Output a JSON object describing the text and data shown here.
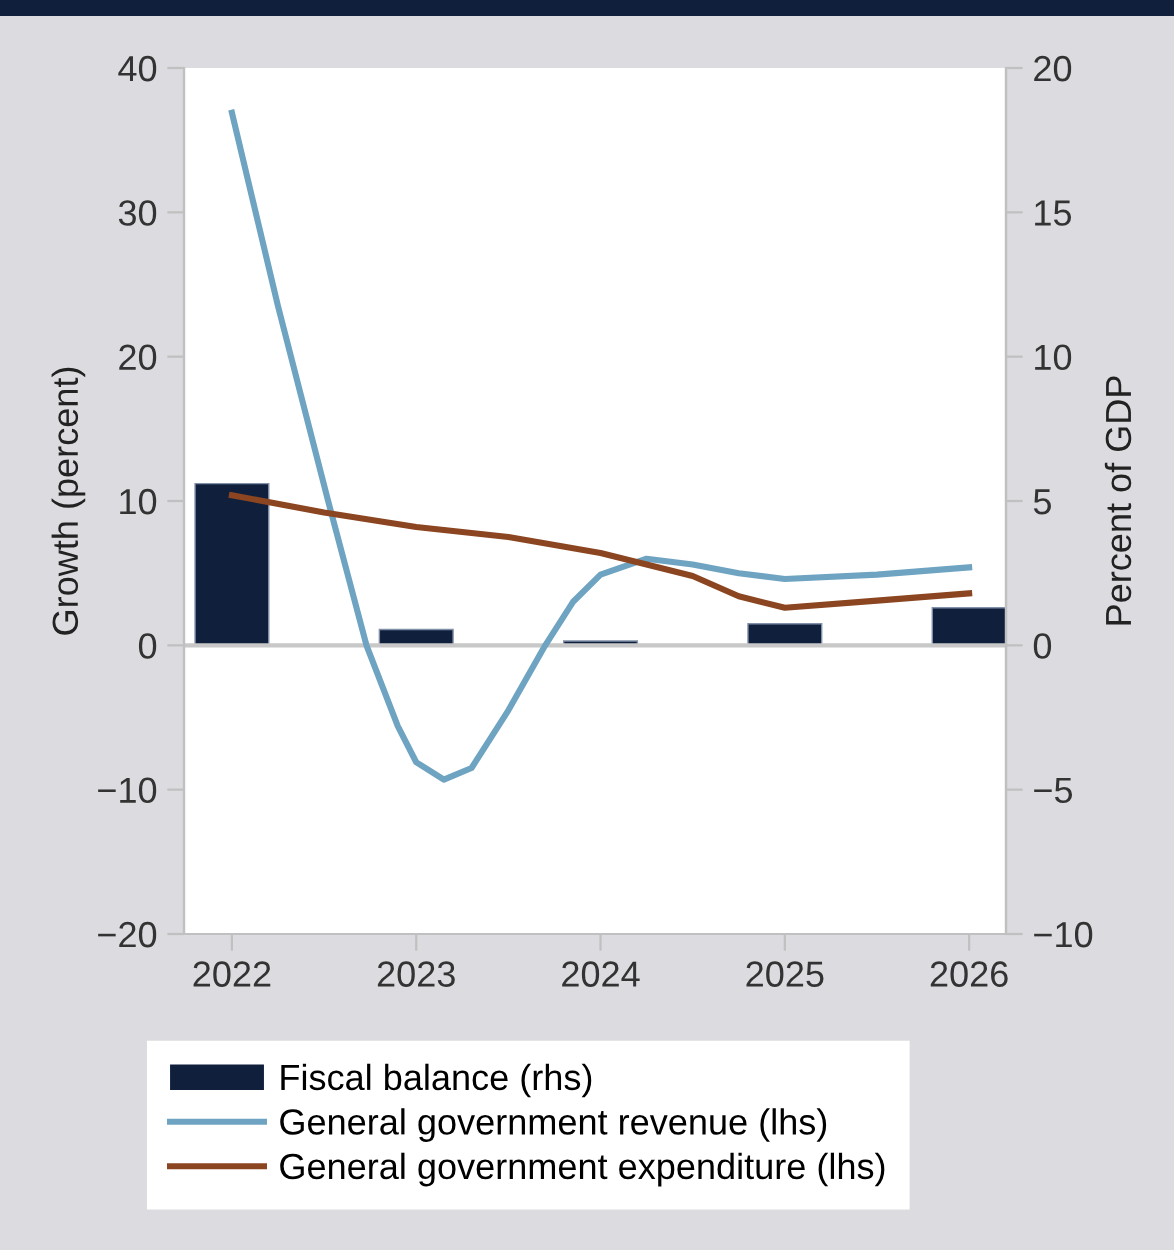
{
  "chart_data": {
    "type": "bar",
    "xlim": [
      2021.74,
      2026.2
    ],
    "xticks": [
      2022,
      2023,
      2024,
      2025,
      2026
    ],
    "ylim": [
      -20,
      40
    ],
    "yticks": [
      -20,
      -10,
      0,
      10,
      20,
      30,
      40
    ],
    "y2lim": [
      -10,
      20
    ],
    "y2ticks": [
      -10,
      -5,
      0,
      5,
      10,
      15,
      20
    ],
    "ylabel": "Growth (percent)",
    "y2label": "Percent of GDP",
    "legend": "bottom",
    "grid": false,
    "ref_lines": [
      {
        "axis": "y",
        "value": 0,
        "color": "#c8c8c8"
      }
    ],
    "series": [
      {
        "name": "Fiscal balance (rhs)",
        "axis": "y2",
        "color": "#10203c",
        "x": [
          2022,
          2023,
          2024,
          2025,
          2026
        ],
        "values": [
          5.6,
          0.55,
          0.15,
          0.75,
          1.3
        ]
      },
      {
        "name": "General government revenue (lhs)",
        "type": "line",
        "axis": "y",
        "color": "#6ea4c2",
        "x": [
          2022.0,
          2022.25,
          2022.52,
          2022.73,
          2022.9,
          2023.0,
          2023.15,
          2023.3,
          2023.5,
          2023.7,
          2023.85,
          2024.0,
          2024.25,
          2024.5,
          2024.75,
          2025.0,
          2025.5,
          2026.0
        ],
        "values": [
          36.9,
          23.5,
          10.1,
          0,
          -5.6,
          -8.1,
          -9.3,
          -8.5,
          -4.5,
          0,
          3,
          4.9,
          6.0,
          5.6,
          5.0,
          4.6,
          4.9,
          5.4
        ]
      },
      {
        "name": "General government expenditure (lhs)",
        "type": "line",
        "axis": "y",
        "color": "#8b4520",
        "x": [
          2022.0,
          2022.5,
          2023.0,
          2023.5,
          2024.0,
          2024.5,
          2024.75,
          2025.0,
          2025.5,
          2026.0
        ],
        "values": [
          10.4,
          9.2,
          8.2,
          7.5,
          6.4,
          4.8,
          3.4,
          2.6,
          3.1,
          3.6
        ]
      }
    ]
  }
}
